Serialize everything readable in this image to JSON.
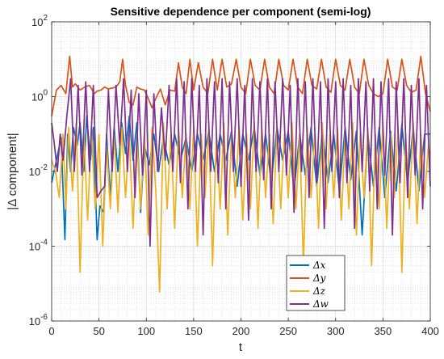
{
  "chart_data": {
    "type": "line",
    "title": "Sensitive dependence per component (semi-log)",
    "xlabel": "t",
    "ylabel": "|Δ component|",
    "xlim": [
      0,
      400
    ],
    "ylim": [
      1e-06,
      100
    ],
    "yscale": "log",
    "grid": "major and minor",
    "legend_position": "bottom-right",
    "x_ticks": [
      "0",
      "50",
      "100",
      "150",
      "200",
      "250",
      "300",
      "350",
      "400"
    ],
    "y_ticks": [
      {
        "base": "10",
        "exp": "-6"
      },
      {
        "base": "10",
        "exp": "-4"
      },
      {
        "base": "10",
        "exp": "-2"
      },
      {
        "base": "10",
        "exp": "0"
      },
      {
        "base": "10",
        "exp": "2"
      }
    ],
    "legend": [
      "Δx",
      "Δy",
      "Δz",
      "Δw"
    ],
    "series": [
      {
        "name": "Δx",
        "color": "#0072BD",
        "x": [
          0,
          5,
          10,
          14,
          17,
          20,
          23,
          27,
          30,
          34,
          37,
          41,
          44,
          48,
          51,
          55,
          58,
          62,
          66,
          70,
          74,
          78,
          82,
          86,
          90,
          94,
          98,
          103,
          108,
          113,
          118,
          124,
          130,
          136,
          142,
          148,
          154,
          160,
          166,
          172,
          178,
          184,
          190,
          196,
          202,
          208,
          214,
          220,
          226,
          232,
          238,
          244,
          250,
          256,
          262,
          268,
          274,
          280,
          286,
          292,
          298,
          304,
          310,
          316,
          322,
          328,
          334,
          340,
          346,
          352,
          358,
          364,
          370,
          376,
          382,
          388,
          394,
          400
        ],
        "y": [
          0.005,
          0.02,
          0.08,
          0.00015,
          0.1,
          0.01,
          0.15,
          0.05,
          0.2,
          0.01,
          0.3,
          0.02,
          0.15,
          0.00015,
          0.0012,
          0.0008,
          0.1,
          0.002,
          0.15,
          0.01,
          0.2,
          0.03,
          0.3,
          0.02,
          0.2,
          0.0008,
          0.05,
          0.015,
          0.1,
          0.01,
          0.08,
          0.015,
          0.1,
          0.02,
          0.08,
          0.01,
          0.1,
          0.02,
          0.12,
          0.01,
          0.1,
          0.02,
          0.12,
          0.004,
          0.1,
          0.02,
          0.15,
          0.008,
          0.1,
          0.005,
          0.15,
          0.02,
          0.12,
          0.003,
          0.1,
          0.008,
          0.15,
          0.004,
          0.12,
          0.005,
          0.1,
          0.003,
          0.15,
          0.006,
          0.12,
          0.0002,
          0.1,
          0.004,
          0.15,
          0.002,
          0.12,
          0.003,
          0.18,
          0.005,
          0.15,
          0.003,
          0.1,
          0.1
        ]
      },
      {
        "name": "Δy",
        "color": "#D95319",
        "x": [
          0,
          5,
          10,
          15,
          19,
          22,
          25,
          30,
          35,
          40,
          45,
          48,
          52,
          56,
          60,
          64,
          68,
          72,
          75,
          78,
          82,
          86,
          90,
          94,
          98,
          102,
          106,
          110,
          115,
          120,
          125,
          130,
          134,
          138,
          142,
          146,
          150,
          155,
          160,
          165,
          170,
          175,
          180,
          185,
          190,
          195,
          200,
          205,
          210,
          215,
          220,
          225,
          230,
          235,
          240,
          245,
          250,
          255,
          260,
          265,
          270,
          275,
          280,
          285,
          290,
          295,
          300,
          305,
          310,
          315,
          320,
          325,
          330,
          335,
          340,
          345,
          350,
          355,
          360,
          365,
          370,
          375,
          380,
          385,
          390,
          395,
          400
        ],
        "y": [
          0.3,
          1.5,
          2,
          1.2,
          12,
          1.8,
          2.2,
          1.5,
          1.8,
          2,
          1.2,
          1.4,
          1.5,
          1.8,
          1.6,
          1.7,
          1.8,
          2.5,
          10,
          2,
          0.7,
          0.6,
          1.8,
          1.6,
          1.5,
          0.9,
          0.5,
          0.9,
          1.6,
          0.6,
          1.5,
          1.4,
          8,
          1.8,
          1.2,
          10,
          1.5,
          8,
          1.8,
          1.2,
          10,
          1.5,
          10,
          1.8,
          2.2,
          10,
          1.8,
          1.2,
          10,
          2,
          1.5,
          10,
          1.8,
          1.2,
          10,
          2,
          1.5,
          10,
          1.8,
          1.2,
          10,
          2,
          1.6,
          10,
          1.8,
          1.3,
          10,
          2,
          1.5,
          10,
          1.8,
          1.2,
          10,
          2,
          1.2,
          1,
          1.2,
          10,
          1.8,
          1.5,
          10,
          2,
          1.3,
          1.5,
          12,
          1.2,
          0.4
        ]
      },
      {
        "name": "Δz",
        "color": "#EDB120",
        "x": [
          0,
          4,
          8,
          12,
          15,
          18,
          22,
          26,
          30,
          34,
          38,
          42,
          46,
          50,
          54,
          58,
          62,
          66,
          70,
          74,
          78,
          82,
          86,
          90,
          94,
          98,
          102,
          106,
          110,
          114,
          118,
          122,
          126,
          130,
          134,
          138,
          142,
          146,
          150,
          154,
          158,
          162,
          166,
          170,
          174,
          178,
          182,
          186,
          190,
          194,
          198,
          202,
          206,
          210,
          214,
          218,
          222,
          226,
          230,
          234,
          238,
          242,
          246,
          250,
          254,
          258,
          262,
          266,
          270,
          274,
          278,
          282,
          286,
          290,
          294,
          298,
          302,
          306,
          310,
          314,
          318,
          322,
          326,
          330,
          334,
          338,
          342,
          346,
          350,
          354,
          358,
          362,
          366,
          370,
          374,
          378,
          382,
          386,
          390,
          394,
          398,
          400
        ],
        "y": [
          0.02,
          0.01,
          0.002,
          0.1,
          0.001,
          0.15,
          0.003,
          0.2,
          2e-05,
          0.1,
          0.0005,
          0.15,
          0.001,
          0.1,
          0.0001,
          0.05,
          0.001,
          0.1,
          0.0008,
          0.15,
          0.002,
          0.1,
          0.0003,
          0.08,
          0.001,
          0.1,
          0.0002,
          0.15,
          0.003,
          6e-06,
          0.2,
          0.001,
          0.1,
          0.0003,
          0.15,
          0.002,
          0.1,
          0.001,
          0.15,
          0.0001,
          0.1,
          0.002,
          0.15,
          3e-05,
          0.1,
          0.001,
          0.2,
          0.0002,
          0.1,
          0.002,
          0.15,
          0.0005,
          0.1,
          0.001,
          0.2,
          0.0003,
          0.15,
          0.002,
          0.1,
          0.0004,
          0.15,
          0.001,
          0.1,
          0.002,
          0.2,
          0.001,
          0.1,
          3e-05,
          0.15,
          0.002,
          0.1,
          0.0003,
          0.2,
          0.001,
          0.1,
          0.002,
          0.15,
          0.0005,
          0.1,
          0.001,
          0.2,
          0.0002,
          0.1,
          0.002,
          0.15,
          3e-05,
          0.1,
          0.001,
          0.2,
          0.0003,
          0.1,
          0.002,
          0.15,
          2e-05,
          0.1,
          0.001,
          0.2,
          0.0004,
          0.1,
          0.002,
          0.05,
          0.03
        ]
      },
      {
        "name": "Δw",
        "color": "#7E2F8E",
        "x": [
          0,
          3,
          6,
          9,
          12,
          16,
          20,
          24,
          28,
          32,
          36,
          40,
          44,
          48,
          52,
          56,
          60,
          64,
          68,
          72,
          76,
          80,
          84,
          88,
          92,
          96,
          100,
          104,
          108,
          112,
          116,
          120,
          124,
          128,
          132,
          136,
          140,
          144,
          148,
          152,
          156,
          160,
          164,
          168,
          172,
          176,
          180,
          184,
          188,
          192,
          196,
          200,
          204,
          208,
          212,
          216,
          220,
          224,
          228,
          232,
          236,
          240,
          244,
          248,
          252,
          256,
          260,
          264,
          268,
          272,
          276,
          280,
          284,
          288,
          292,
          296,
          300,
          304,
          308,
          312,
          316,
          320,
          324,
          328,
          332,
          336,
          340,
          344,
          348,
          352,
          356,
          360,
          364,
          368,
          372,
          376,
          380,
          384,
          388,
          392,
          396,
          400
        ],
        "y": [
          0.2,
          0.05,
          0.01,
          0.1,
          0.02,
          0.3,
          3,
          0.01,
          2,
          0.008,
          2.5,
          0.01,
          2,
          0.002,
          0.003,
          0.004,
          1.5,
          0.01,
          2,
          0.05,
          3,
          0.01,
          1.5,
          0.002,
          1.2,
          0.008,
          1.5,
          0.0001,
          1.2,
          0.01,
          0.5,
          0.02,
          2,
          0.01,
          3,
          0.005,
          2.5,
          0.001,
          3,
          0.01,
          2,
          0.0002,
          3,
          0.01,
          2.5,
          0.005,
          3,
          0.001,
          2.5,
          0.01,
          3,
          0.004,
          2,
          0.0005,
          3,
          0.01,
          2.5,
          0.006,
          3,
          0.001,
          2.5,
          0.01,
          3,
          0.008,
          2,
          0.0008,
          3,
          0.01,
          2.5,
          0.002,
          3,
          0.005,
          2.5,
          0.0003,
          3,
          0.01,
          2.5,
          0.002,
          3,
          0.005,
          2,
          0.0003,
          3,
          0.01,
          2.5,
          0.003,
          3,
          0.001,
          2.5,
          0.008,
          3,
          0.0002,
          2.5,
          0.005,
          3,
          0.002,
          2,
          0.008,
          3,
          0.001,
          2,
          0.004
        ]
      }
    ]
  }
}
